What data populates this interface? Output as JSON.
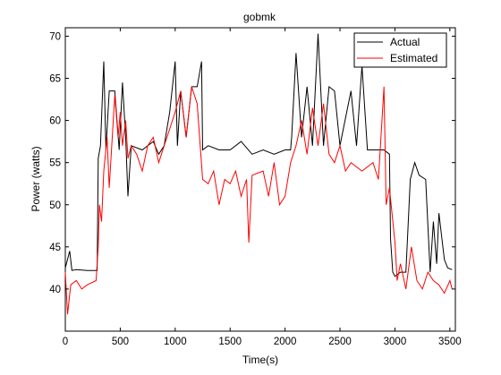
{
  "chart_data": {
    "type": "line",
    "title": "gobmk",
    "xlabel": "Time(s)",
    "ylabel": "Power (watts)",
    "xlim": [
      0,
      3550
    ],
    "ylim": [
      35,
      71
    ],
    "xticks": [
      0,
      500,
      1000,
      1500,
      2000,
      2500,
      3000,
      3500
    ],
    "yticks": [
      40,
      45,
      50,
      55,
      60,
      65,
      70
    ],
    "grid": false,
    "legend_position": "top-right",
    "series": [
      {
        "name": "Actual",
        "color": "#000000",
        "points": [
          [
            0,
            42.5
          ],
          [
            40,
            44.5
          ],
          [
            60,
            42.2
          ],
          [
            100,
            42.3
          ],
          [
            200,
            42.2
          ],
          [
            290,
            42.2
          ],
          [
            300,
            55.5
          ],
          [
            320,
            57
          ],
          [
            350,
            67
          ],
          [
            370,
            56.5
          ],
          [
            400,
            63.5
          ],
          [
            450,
            63.5
          ],
          [
            490,
            56.5
          ],
          [
            520,
            64.5
          ],
          [
            550,
            58
          ],
          [
            570,
            51
          ],
          [
            600,
            57
          ],
          [
            700,
            56.5
          ],
          [
            800,
            57.5
          ],
          [
            850,
            56
          ],
          [
            900,
            57
          ],
          [
            950,
            61
          ],
          [
            1000,
            67
          ],
          [
            1020,
            57
          ],
          [
            1050,
            63.5
          ],
          [
            1100,
            58
          ],
          [
            1150,
            64
          ],
          [
            1200,
            64
          ],
          [
            1240,
            67
          ],
          [
            1250,
            56.5
          ],
          [
            1300,
            57
          ],
          [
            1400,
            56.5
          ],
          [
            1500,
            56.5
          ],
          [
            1600,
            57.5
          ],
          [
            1700,
            56
          ],
          [
            1800,
            56.5
          ],
          [
            1900,
            56
          ],
          [
            2000,
            56.5
          ],
          [
            2050,
            56.5
          ],
          [
            2060,
            58
          ],
          [
            2100,
            68
          ],
          [
            2150,
            58
          ],
          [
            2200,
            64
          ],
          [
            2250,
            57
          ],
          [
            2300,
            70.3
          ],
          [
            2350,
            57
          ],
          [
            2400,
            64
          ],
          [
            2450,
            63.5
          ],
          [
            2500,
            57
          ],
          [
            2600,
            63.5
          ],
          [
            2650,
            57
          ],
          [
            2700,
            66.5
          ],
          [
            2750,
            56.5
          ],
          [
            2800,
            56.5
          ],
          [
            2900,
            56.5
          ],
          [
            2950,
            56
          ],
          [
            2960,
            46
          ],
          [
            2980,
            42
          ],
          [
            3000,
            41.5
          ],
          [
            3050,
            42
          ],
          [
            3100,
            42
          ],
          [
            3140,
            53
          ],
          [
            3180,
            55
          ],
          [
            3220,
            53.5
          ],
          [
            3280,
            53
          ],
          [
            3320,
            42
          ],
          [
            3350,
            48
          ],
          [
            3380,
            43
          ],
          [
            3400,
            49
          ],
          [
            3450,
            43.5
          ],
          [
            3480,
            42.5
          ],
          [
            3520,
            42.3
          ]
        ]
      },
      {
        "name": "Estimated",
        "color": "#ff0000",
        "points": [
          [
            0,
            42
          ],
          [
            20,
            37
          ],
          [
            50,
            40.5
          ],
          [
            100,
            41
          ],
          [
            150,
            40
          ],
          [
            200,
            40.5
          ],
          [
            280,
            41
          ],
          [
            300,
            45
          ],
          [
            310,
            50
          ],
          [
            330,
            48
          ],
          [
            350,
            54
          ],
          [
            380,
            58
          ],
          [
            400,
            52
          ],
          [
            450,
            63
          ],
          [
            480,
            58
          ],
          [
            500,
            61
          ],
          [
            520,
            57
          ],
          [
            550,
            60
          ],
          [
            570,
            55.5
          ],
          [
            600,
            57
          ],
          [
            650,
            56
          ],
          [
            700,
            54
          ],
          [
            750,
            57
          ],
          [
            800,
            58
          ],
          [
            850,
            55
          ],
          [
            900,
            57
          ],
          [
            950,
            59
          ],
          [
            1000,
            61
          ],
          [
            1050,
            63.5
          ],
          [
            1100,
            58
          ],
          [
            1150,
            64
          ],
          [
            1200,
            62
          ],
          [
            1250,
            53
          ],
          [
            1300,
            52.5
          ],
          [
            1350,
            54
          ],
          [
            1400,
            50
          ],
          [
            1450,
            53
          ],
          [
            1500,
            52.5
          ],
          [
            1550,
            54
          ],
          [
            1600,
            51
          ],
          [
            1650,
            53
          ],
          [
            1670,
            45.5
          ],
          [
            1700,
            53.5
          ],
          [
            1800,
            54
          ],
          [
            1850,
            51
          ],
          [
            1900,
            55
          ],
          [
            1950,
            50
          ],
          [
            2000,
            51
          ],
          [
            2050,
            55
          ],
          [
            2100,
            57
          ],
          [
            2150,
            60
          ],
          [
            2200,
            56
          ],
          [
            2250,
            61.5
          ],
          [
            2300,
            57
          ],
          [
            2350,
            62
          ],
          [
            2400,
            56
          ],
          [
            2450,
            55
          ],
          [
            2500,
            57
          ],
          [
            2550,
            54
          ],
          [
            2600,
            55
          ],
          [
            2700,
            54
          ],
          [
            2800,
            55
          ],
          [
            2850,
            53
          ],
          [
            2900,
            64
          ],
          [
            2920,
            50
          ],
          [
            2950,
            52
          ],
          [
            3000,
            45.5
          ],
          [
            3020,
            41
          ],
          [
            3050,
            43
          ],
          [
            3100,
            40
          ],
          [
            3150,
            45
          ],
          [
            3200,
            41
          ],
          [
            3250,
            40
          ],
          [
            3300,
            42
          ],
          [
            3350,
            41
          ],
          [
            3400,
            40.5
          ],
          [
            3450,
            39.5
          ],
          [
            3500,
            41
          ],
          [
            3520,
            40
          ]
        ]
      }
    ]
  }
}
